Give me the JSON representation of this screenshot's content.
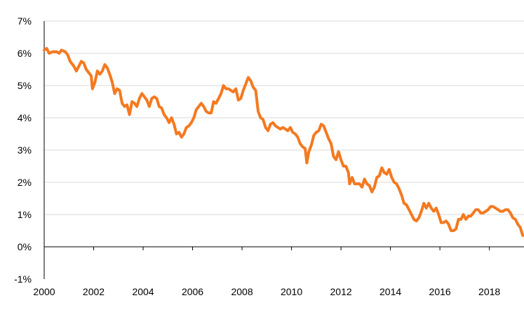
{
  "chart_data": {
    "type": "line",
    "title": "",
    "xlabel": "",
    "ylabel": "",
    "xlim": [
      2000,
      2019.4
    ],
    "ylim": [
      -1,
      7
    ],
    "grid": true,
    "legend": "none",
    "y_ticks": [
      {
        "value": -1,
        "label": "-1%"
      },
      {
        "value": 0,
        "label": "0%"
      },
      {
        "value": 1,
        "label": "1%"
      },
      {
        "value": 2,
        "label": "2%"
      },
      {
        "value": 3,
        "label": "3%"
      },
      {
        "value": 4,
        "label": "4%"
      },
      {
        "value": 5,
        "label": "5%"
      },
      {
        "value": 6,
        "label": "6%"
      },
      {
        "value": 7,
        "label": "7%"
      }
    ],
    "x_ticks": [
      {
        "value": 2000,
        "label": "2000"
      },
      {
        "value": 2002,
        "label": "2002"
      },
      {
        "value": 2004,
        "label": "2004"
      },
      {
        "value": 2006,
        "label": "2006"
      },
      {
        "value": 2008,
        "label": "2008"
      },
      {
        "value": 2010,
        "label": "2010"
      },
      {
        "value": 2012,
        "label": "2012"
      },
      {
        "value": 2014,
        "label": "2014"
      },
      {
        "value": 2016,
        "label": "2016"
      },
      {
        "value": 2018,
        "label": "2018"
      }
    ],
    "series": [
      {
        "color": "#f47920",
        "points": [
          [
            2000.0,
            6.1
          ],
          [
            2000.1,
            6.15
          ],
          [
            2000.2,
            6.0
          ],
          [
            2000.35,
            6.05
          ],
          [
            2000.5,
            6.05
          ],
          [
            2000.6,
            6.0
          ],
          [
            2000.7,
            6.1
          ],
          [
            2000.85,
            6.05
          ],
          [
            2000.95,
            5.95
          ],
          [
            2001.05,
            5.75
          ],
          [
            2001.2,
            5.6
          ],
          [
            2001.3,
            5.45
          ],
          [
            2001.4,
            5.6
          ],
          [
            2001.5,
            5.75
          ],
          [
            2001.6,
            5.7
          ],
          [
            2001.7,
            5.5
          ],
          [
            2001.8,
            5.4
          ],
          [
            2001.9,
            5.3
          ],
          [
            2001.95,
            4.9
          ],
          [
            2002.05,
            5.1
          ],
          [
            2002.15,
            5.45
          ],
          [
            2002.25,
            5.35
          ],
          [
            2002.35,
            5.45
          ],
          [
            2002.45,
            5.65
          ],
          [
            2002.55,
            5.55
          ],
          [
            2002.65,
            5.35
          ],
          [
            2002.75,
            5.1
          ],
          [
            2002.85,
            4.75
          ],
          [
            2002.95,
            4.9
          ],
          [
            2003.05,
            4.85
          ],
          [
            2003.15,
            4.45
          ],
          [
            2003.25,
            4.35
          ],
          [
            2003.35,
            4.4
          ],
          [
            2003.45,
            4.1
          ],
          [
            2003.55,
            4.5
          ],
          [
            2003.65,
            4.45
          ],
          [
            2003.75,
            4.35
          ],
          [
            2003.85,
            4.6
          ],
          [
            2003.95,
            4.75
          ],
          [
            2004.05,
            4.65
          ],
          [
            2004.15,
            4.55
          ],
          [
            2004.25,
            4.35
          ],
          [
            2004.35,
            4.6
          ],
          [
            2004.45,
            4.65
          ],
          [
            2004.55,
            4.6
          ],
          [
            2004.65,
            4.35
          ],
          [
            2004.75,
            4.3
          ],
          [
            2004.85,
            4.1
          ],
          [
            2004.95,
            4.0
          ],
          [
            2005.05,
            3.85
          ],
          [
            2005.15,
            4.0
          ],
          [
            2005.25,
            3.8
          ],
          [
            2005.35,
            3.5
          ],
          [
            2005.45,
            3.55
          ],
          [
            2005.55,
            3.4
          ],
          [
            2005.65,
            3.5
          ],
          [
            2005.75,
            3.7
          ],
          [
            2005.85,
            3.75
          ],
          [
            2005.95,
            3.85
          ],
          [
            2006.05,
            4.0
          ],
          [
            2006.15,
            4.25
          ],
          [
            2006.25,
            4.35
          ],
          [
            2006.35,
            4.45
          ],
          [
            2006.45,
            4.35
          ],
          [
            2006.55,
            4.2
          ],
          [
            2006.65,
            4.15
          ],
          [
            2006.75,
            4.15
          ],
          [
            2006.85,
            4.5
          ],
          [
            2006.95,
            4.45
          ],
          [
            2007.05,
            4.6
          ],
          [
            2007.15,
            4.75
          ],
          [
            2007.25,
            5.0
          ],
          [
            2007.35,
            4.9
          ],
          [
            2007.45,
            4.9
          ],
          [
            2007.55,
            4.85
          ],
          [
            2007.65,
            4.8
          ],
          [
            2007.75,
            4.9
          ],
          [
            2007.85,
            4.55
          ],
          [
            2007.95,
            4.6
          ],
          [
            2008.05,
            4.85
          ],
          [
            2008.15,
            5.05
          ],
          [
            2008.25,
            5.25
          ],
          [
            2008.35,
            5.15
          ],
          [
            2008.45,
            4.95
          ],
          [
            2008.55,
            4.85
          ],
          [
            2008.65,
            4.2
          ],
          [
            2008.75,
            4.0
          ],
          [
            2008.85,
            3.95
          ],
          [
            2008.95,
            3.7
          ],
          [
            2009.05,
            3.6
          ],
          [
            2009.15,
            3.8
          ],
          [
            2009.25,
            3.85
          ],
          [
            2009.35,
            3.75
          ],
          [
            2009.45,
            3.7
          ],
          [
            2009.55,
            3.65
          ],
          [
            2009.65,
            3.7
          ],
          [
            2009.75,
            3.65
          ],
          [
            2009.85,
            3.6
          ],
          [
            2009.95,
            3.7
          ],
          [
            2010.05,
            3.55
          ],
          [
            2010.15,
            3.5
          ],
          [
            2010.25,
            3.4
          ],
          [
            2010.35,
            3.2
          ],
          [
            2010.45,
            3.1
          ],
          [
            2010.55,
            3.05
          ],
          [
            2010.62,
            2.6
          ],
          [
            2010.7,
            2.95
          ],
          [
            2010.8,
            3.15
          ],
          [
            2010.9,
            3.45
          ],
          [
            2011.0,
            3.55
          ],
          [
            2011.1,
            3.6
          ],
          [
            2011.2,
            3.8
          ],
          [
            2011.3,
            3.75
          ],
          [
            2011.4,
            3.55
          ],
          [
            2011.5,
            3.35
          ],
          [
            2011.6,
            3.2
          ],
          [
            2011.7,
            2.8
          ],
          [
            2011.8,
            2.7
          ],
          [
            2011.9,
            2.95
          ],
          [
            2012.0,
            2.7
          ],
          [
            2012.1,
            2.5
          ],
          [
            2012.2,
            2.5
          ],
          [
            2012.3,
            2.3
          ],
          [
            2012.35,
            1.95
          ],
          [
            2012.45,
            2.15
          ],
          [
            2012.55,
            1.95
          ],
          [
            2012.65,
            1.95
          ],
          [
            2012.75,
            1.95
          ],
          [
            2012.85,
            1.85
          ],
          [
            2012.95,
            2.1
          ],
          [
            2013.05,
            1.95
          ],
          [
            2013.15,
            1.9
          ],
          [
            2013.25,
            1.7
          ],
          [
            2013.35,
            1.85
          ],
          [
            2013.45,
            2.15
          ],
          [
            2013.55,
            2.2
          ],
          [
            2013.65,
            2.45
          ],
          [
            2013.75,
            2.3
          ],
          [
            2013.85,
            2.25
          ],
          [
            2013.95,
            2.4
          ],
          [
            2014.05,
            2.15
          ],
          [
            2014.15,
            2.0
          ],
          [
            2014.25,
            1.95
          ],
          [
            2014.35,
            1.8
          ],
          [
            2014.45,
            1.6
          ],
          [
            2014.55,
            1.35
          ],
          [
            2014.65,
            1.3
          ],
          [
            2014.75,
            1.15
          ],
          [
            2014.85,
            1.0
          ],
          [
            2014.95,
            0.85
          ],
          [
            2015.05,
            0.8
          ],
          [
            2015.15,
            0.9
          ],
          [
            2015.25,
            1.1
          ],
          [
            2015.35,
            1.35
          ],
          [
            2015.45,
            1.2
          ],
          [
            2015.55,
            1.35
          ],
          [
            2015.65,
            1.2
          ],
          [
            2015.75,
            1.1
          ],
          [
            2015.85,
            1.2
          ],
          [
            2015.95,
            1.0
          ],
          [
            2016.05,
            0.75
          ],
          [
            2016.15,
            0.75
          ],
          [
            2016.25,
            0.8
          ],
          [
            2016.35,
            0.7
          ],
          [
            2016.45,
            0.5
          ],
          [
            2016.55,
            0.5
          ],
          [
            2016.65,
            0.55
          ],
          [
            2016.75,
            0.85
          ],
          [
            2016.85,
            0.85
          ],
          [
            2016.95,
            1.0
          ],
          [
            2017.05,
            0.85
          ],
          [
            2017.15,
            0.95
          ],
          [
            2017.25,
            0.95
          ],
          [
            2017.35,
            1.05
          ],
          [
            2017.45,
            1.15
          ],
          [
            2017.55,
            1.15
          ],
          [
            2017.65,
            1.05
          ],
          [
            2017.75,
            1.05
          ],
          [
            2017.85,
            1.1
          ],
          [
            2017.95,
            1.15
          ],
          [
            2018.05,
            1.25
          ],
          [
            2018.15,
            1.25
          ],
          [
            2018.25,
            1.2
          ],
          [
            2018.35,
            1.15
          ],
          [
            2018.45,
            1.1
          ],
          [
            2018.55,
            1.1
          ],
          [
            2018.65,
            1.15
          ],
          [
            2018.75,
            1.15
          ],
          [
            2018.85,
            1.05
          ],
          [
            2018.95,
            0.9
          ],
          [
            2019.05,
            0.85
          ],
          [
            2019.15,
            0.7
          ],
          [
            2019.25,
            0.6
          ],
          [
            2019.35,
            0.35
          ]
        ]
      }
    ]
  }
}
